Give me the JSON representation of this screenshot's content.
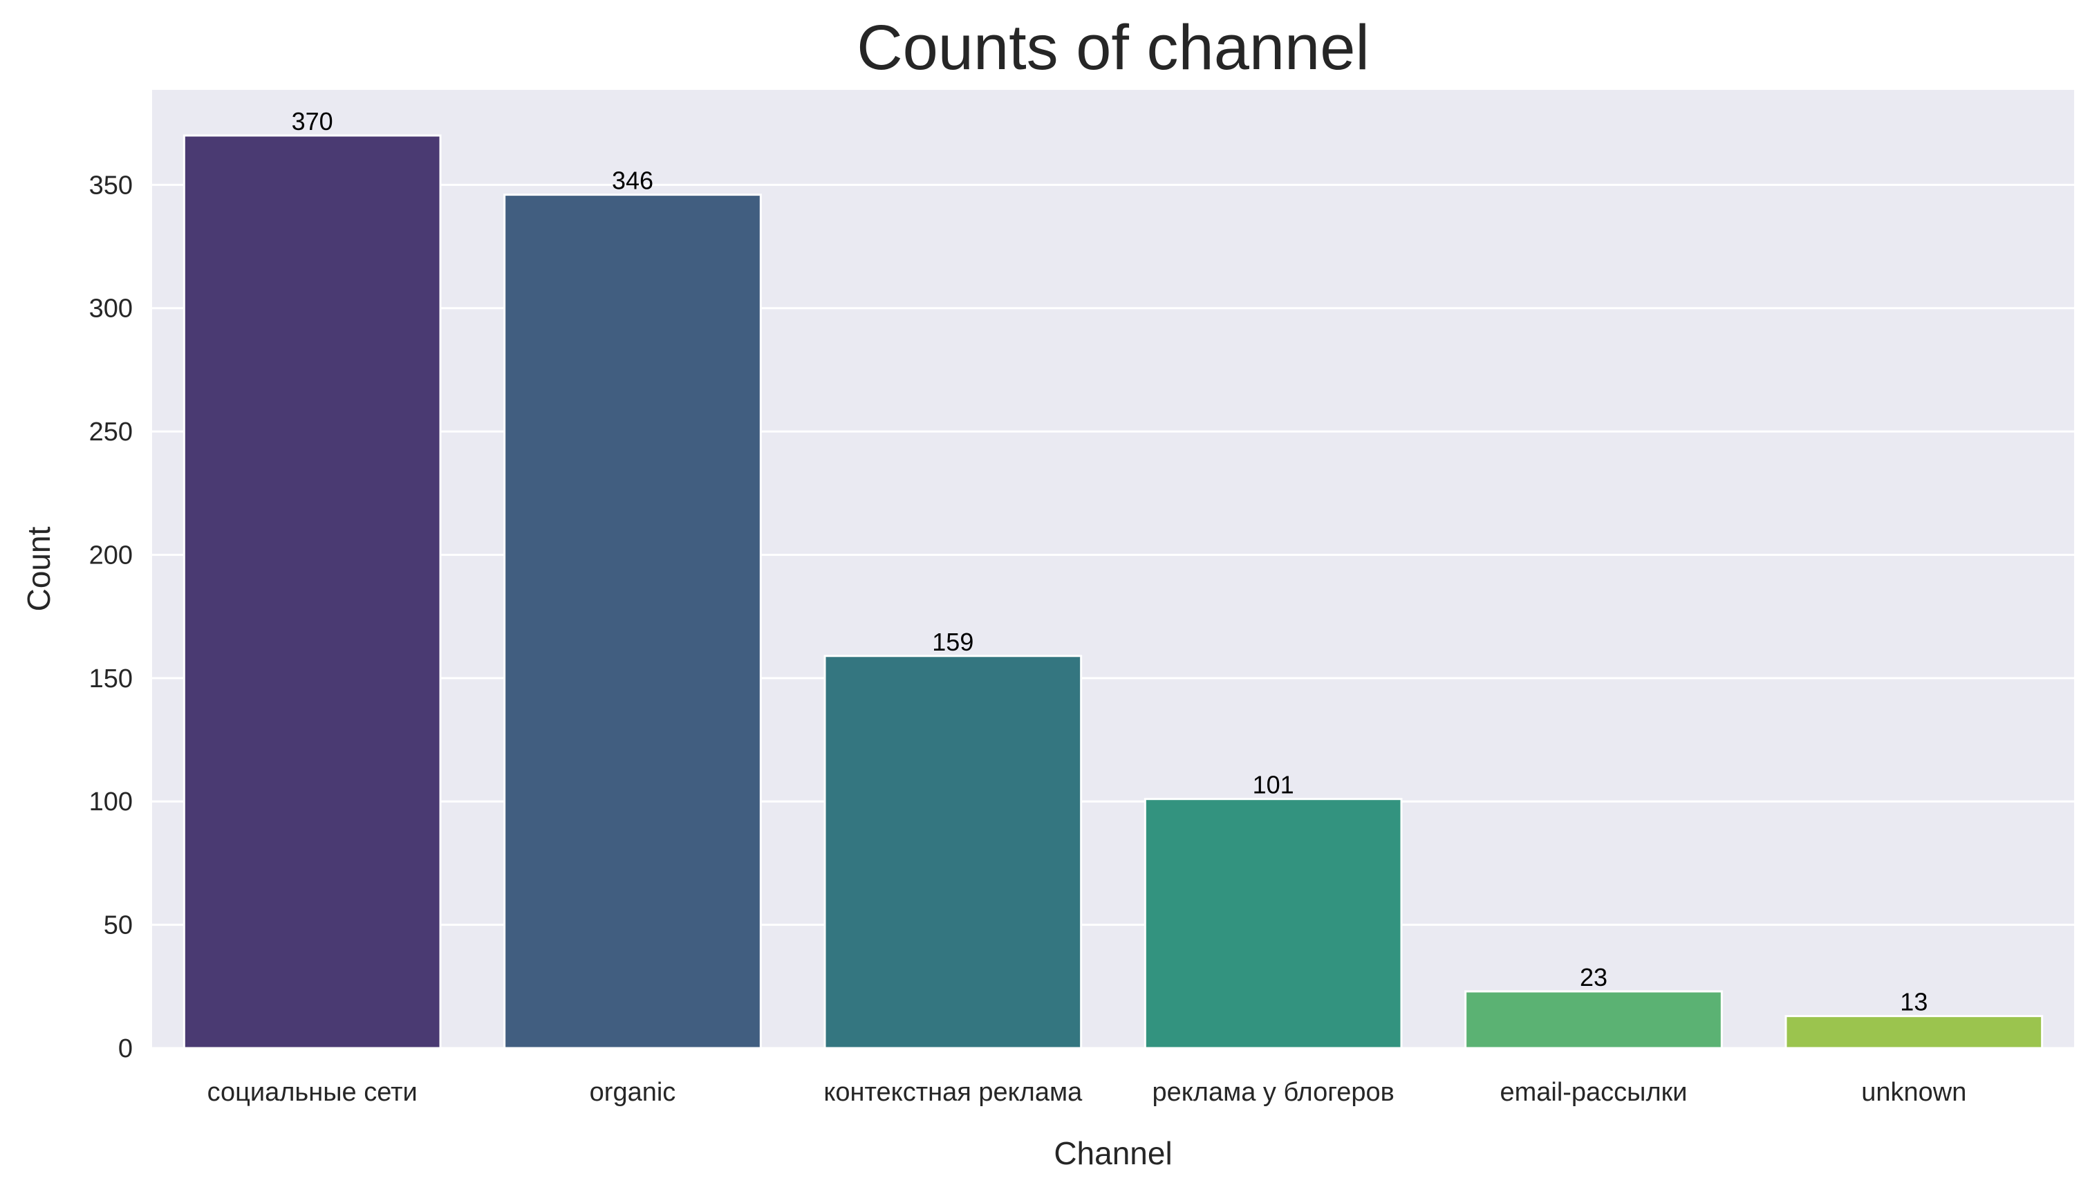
{
  "chart_data": {
    "type": "bar",
    "title": "Counts of channel",
    "xlabel": "Channel",
    "ylabel": "Count",
    "categories": [
      "социальные сети",
      "organic",
      "контекстная реклама",
      "реклама у блогеров",
      "email-рассылки",
      "unknown"
    ],
    "values": [
      370,
      346,
      159,
      101,
      23,
      13
    ],
    "data_labels": [
      "370",
      "346",
      "159",
      "101",
      "23",
      "13"
    ],
    "colors": [
      "#4a3a72",
      "#415e80",
      "#347680",
      "#33937f",
      "#5bb273",
      "#9bc44e"
    ],
    "ylim": [
      0,
      388.5
    ],
    "yticks": [
      0,
      50,
      100,
      150,
      200,
      250,
      300,
      350
    ],
    "ytick_labels": [
      "0",
      "50",
      "100",
      "150",
      "200",
      "250",
      "300",
      "350"
    ],
    "grid": true,
    "legend": "none",
    "background_color": "#eaeaf2",
    "grid_color": "#ffffff"
  }
}
